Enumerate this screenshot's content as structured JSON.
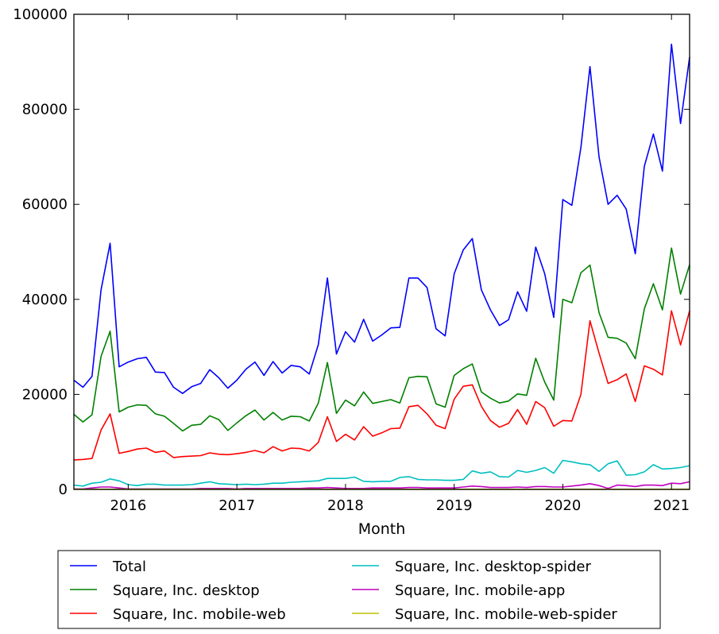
{
  "chart_data": {
    "type": "line",
    "title": "",
    "xlabel": "Month",
    "ylabel": "",
    "xlim": [
      "2015-07",
      "2021-03"
    ],
    "ylim": [
      0,
      100000
    ],
    "x_ticks": [
      {
        "date": "2016-01",
        "label": "2016"
      },
      {
        "date": "2017-01",
        "label": "2017"
      },
      {
        "date": "2018-01",
        "label": "2018"
      },
      {
        "date": "2019-01",
        "label": "2019"
      },
      {
        "date": "2020-01",
        "label": "2020"
      },
      {
        "date": "2021-01",
        "label": "2021"
      }
    ],
    "y_ticks": [
      {
        "value": 0,
        "label": "0"
      },
      {
        "value": 20000,
        "label": "20000"
      },
      {
        "value": 40000,
        "label": "40000"
      },
      {
        "value": 60000,
        "label": "60000"
      },
      {
        "value": 80000,
        "label": "80000"
      },
      {
        "value": 100000,
        "label": "100000"
      }
    ],
    "grid": false,
    "legend_position": "bottom",
    "x": [
      "2015-07",
      "2015-08",
      "2015-09",
      "2015-10",
      "2015-11",
      "2015-12",
      "2016-01",
      "2016-02",
      "2016-03",
      "2016-04",
      "2016-05",
      "2016-06",
      "2016-07",
      "2016-08",
      "2016-09",
      "2016-10",
      "2016-11",
      "2016-12",
      "2017-01",
      "2017-02",
      "2017-03",
      "2017-04",
      "2017-05",
      "2017-06",
      "2017-07",
      "2017-08",
      "2017-09",
      "2017-10",
      "2017-11",
      "2017-12",
      "2018-01",
      "2018-02",
      "2018-03",
      "2018-04",
      "2018-05",
      "2018-06",
      "2018-07",
      "2018-08",
      "2018-09",
      "2018-10",
      "2018-11",
      "2018-12",
      "2019-01",
      "2019-02",
      "2019-03",
      "2019-04",
      "2019-05",
      "2019-06",
      "2019-07",
      "2019-08",
      "2019-09",
      "2019-10",
      "2019-11",
      "2019-12",
      "2020-01",
      "2020-02",
      "2020-03",
      "2020-04",
      "2020-05",
      "2020-06",
      "2020-07",
      "2020-08",
      "2020-09",
      "2020-10",
      "2020-11",
      "2020-12",
      "2021-01",
      "2021-02",
      "2021-03"
    ],
    "series": [
      {
        "name": "Total",
        "color": "#0000ff",
        "values": [
          23000,
          21500,
          23800,
          42000,
          51800,
          25800,
          26800,
          27500,
          27800,
          24700,
          24600,
          21500,
          20200,
          21600,
          22300,
          25200,
          23500,
          21300,
          23000,
          25300,
          26800,
          24000,
          26900,
          24500,
          26100,
          25800,
          24300,
          30500,
          44500,
          28500,
          33200,
          31000,
          35800,
          31200,
          32500,
          34000,
          34100,
          44500,
          44500,
          42500,
          33800,
          32300,
          45400,
          50400,
          52800,
          42000,
          37800,
          34500,
          35700,
          41600,
          37500,
          51000,
          45400,
          36200,
          61000,
          59800,
          72000,
          89000,
          70000,
          60000,
          61900,
          59000,
          49600,
          68000,
          74800,
          67000,
          93700,
          77000,
          91000
        ]
      },
      {
        "name": "Square, Inc. desktop",
        "color": "#008000",
        "values": [
          15800,
          14200,
          15700,
          28000,
          33300,
          16300,
          17300,
          17800,
          17700,
          15900,
          15400,
          13900,
          12300,
          13500,
          13700,
          15500,
          14700,
          12400,
          14000,
          15500,
          16700,
          14600,
          16200,
          14600,
          15400,
          15300,
          14400,
          18200,
          26700,
          16000,
          18800,
          17600,
          20500,
          18100,
          18500,
          18900,
          18200,
          23500,
          23800,
          23700,
          18000,
          17300,
          24000,
          25400,
          26400,
          20500,
          19200,
          18200,
          18600,
          20100,
          19800,
          27600,
          22600,
          18800,
          40000,
          39300,
          45600,
          47200,
          37200,
          32000,
          31800,
          30800,
          27500,
          38000,
          43300,
          37800,
          50800,
          41100,
          47300
        ]
      },
      {
        "name": "Square, Inc. mobile-web",
        "color": "#ff0000",
        "values": [
          6200,
          6300,
          6500,
          12500,
          15900,
          7600,
          8000,
          8500,
          8700,
          7800,
          8100,
          6700,
          6900,
          7000,
          7100,
          7700,
          7400,
          7300,
          7500,
          7800,
          8200,
          7700,
          9000,
          8100,
          8700,
          8600,
          8100,
          9900,
          15300,
          10100,
          11600,
          10400,
          13200,
          11200,
          11900,
          12800,
          12900,
          17400,
          17700,
          15900,
          13500,
          12800,
          19000,
          21700,
          22000,
          17500,
          14500,
          13100,
          13900,
          16800,
          13700,
          18500,
          17200,
          13300,
          14500,
          14400,
          20000,
          35500,
          28700,
          22300,
          23100,
          24300,
          18500,
          26000,
          25300,
          24100,
          37600,
          30400,
          37600
        ]
      },
      {
        "name": "Square, Inc. desktop-spider",
        "color": "#00bfbf",
        "values": [
          900,
          700,
          1300,
          1500,
          2200,
          1800,
          1000,
          800,
          1100,
          1100,
          900,
          900,
          900,
          1000,
          1300,
          1600,
          1200,
          1100,
          1000,
          1100,
          1000,
          1100,
          1300,
          1300,
          1500,
          1600,
          1700,
          1800,
          2300,
          2300,
          2300,
          2600,
          1700,
          1600,
          1700,
          1700,
          2500,
          2700,
          2100,
          2000,
          2000,
          1900,
          1900,
          2100,
          3900,
          3400,
          3700,
          2700,
          2600,
          4000,
          3600,
          4000,
          4600,
          3400,
          6100,
          5800,
          5400,
          5200,
          3800,
          5400,
          6000,
          3000,
          3100,
          3700,
          5200,
          4300,
          4400,
          4600,
          5000
        ]
      },
      {
        "name": "Square, Inc. mobile-app",
        "color": "#bf00bf",
        "values": [
          100,
          100,
          300,
          500,
          500,
          300,
          100,
          100,
          100,
          100,
          100,
          100,
          100,
          100,
          200,
          200,
          200,
          200,
          100,
          200,
          200,
          200,
          200,
          200,
          200,
          200,
          300,
          300,
          400,
          300,
          200,
          200,
          200,
          300,
          300,
          300,
          300,
          400,
          400,
          300,
          300,
          300,
          300,
          500,
          700,
          600,
          400,
          400,
          400,
          500,
          400,
          600,
          600,
          500,
          500,
          700,
          900,
          1200,
          800,
          200,
          900,
          800,
          600,
          900,
          900,
          800,
          1300,
          1200,
          1600
        ]
      },
      {
        "name": "Square, Inc. mobile-web-spider",
        "color": "#bfbf00",
        "values": [
          30,
          30,
          30,
          40,
          40,
          30,
          30,
          30,
          30,
          30,
          30,
          30,
          30,
          30,
          30,
          30,
          30,
          30,
          30,
          30,
          30,
          30,
          30,
          30,
          30,
          30,
          30,
          30,
          30,
          30,
          30,
          30,
          30,
          30,
          30,
          30,
          30,
          30,
          30,
          30,
          30,
          30,
          30,
          30,
          30,
          30,
          30,
          30,
          30,
          30,
          30,
          30,
          30,
          30,
          30,
          30,
          30,
          30,
          30,
          30,
          30,
          30,
          30,
          30,
          30,
          30,
          30,
          30,
          30
        ]
      }
    ]
  }
}
